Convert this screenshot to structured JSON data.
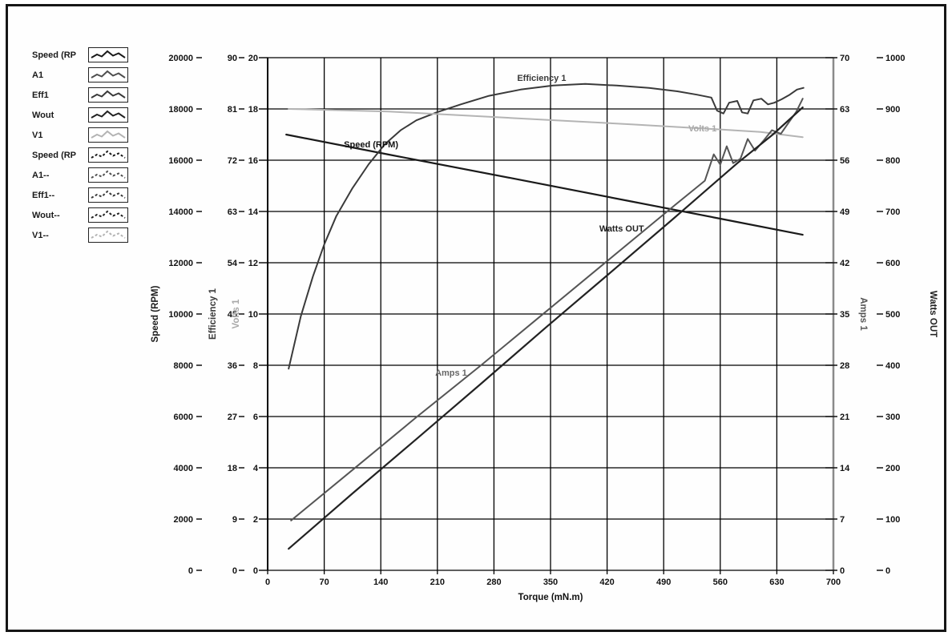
{
  "page": {
    "background": "#ffffff",
    "frame_border_color": "#161616"
  },
  "legend": {
    "items": [
      {
        "label": "Speed (RP",
        "color": "#1a1a1a",
        "dashed": false
      },
      {
        "label": "A1",
        "color": "#4f4f4f",
        "dashed": false
      },
      {
        "label": "Eff1",
        "color": "#3a3a3a",
        "dashed": false
      },
      {
        "label": "Wout",
        "color": "#222222",
        "dashed": false
      },
      {
        "label": "V1",
        "color": "#b4b4b4",
        "dashed": false
      },
      {
        "label": "Speed (RP",
        "color": "#1a1a1a",
        "dashed": true
      },
      {
        "label": "A1--",
        "color": "#4f4f4f",
        "dashed": true
      },
      {
        "label": "Eff1--",
        "color": "#3a3a3a",
        "dashed": true
      },
      {
        "label": "Wout--",
        "color": "#222222",
        "dashed": true
      },
      {
        "label": "V1--",
        "color": "#b4b4b4",
        "dashed": true
      }
    ]
  },
  "chart_data": {
    "type": "line",
    "title": "",
    "xlabel": "Torque (mN.m)",
    "xlim": [
      0,
      700
    ],
    "x_tick_step": 70,
    "grid": true,
    "grid_color": "#000000",
    "axes_left": [
      {
        "id": "speed",
        "title": "Speed (RPM)",
        "min": 0,
        "max": 20000,
        "tick_step": 2000,
        "color": "#1a1a1a"
      },
      {
        "id": "efficiency",
        "title": "Efficiency 1",
        "min": 0,
        "max": 90,
        "tick_step": 9,
        "color": "#3a3a3a"
      },
      {
        "id": "volts",
        "title": "Volts 1",
        "min": 0,
        "max": 20,
        "tick_step": 2,
        "color": "#a8a8a8"
      }
    ],
    "axes_right": [
      {
        "id": "amps",
        "title": "Amps 1",
        "min": 0,
        "max": 70,
        "tick_step": 7,
        "color": "#555555"
      },
      {
        "id": "watts",
        "title": "Watts OUT",
        "min": 0,
        "max": 1000,
        "tick_step": 100,
        "color": "#222222"
      }
    ],
    "series": [
      {
        "name": "Speed (RPM)",
        "axis": "speed",
        "color": "#1a1a1a",
        "width": 2.2,
        "points": [
          [
            23,
            17000
          ],
          [
            150,
            16220
          ],
          [
            300,
            15310
          ],
          [
            450,
            14390
          ],
          [
            560,
            13720
          ],
          [
            662,
            13090
          ]
        ]
      },
      {
        "name": "Efficiency 1",
        "axis": "efficiency",
        "color": "#3a3a3a",
        "width": 2,
        "points": [
          [
            26,
            35.4
          ],
          [
            41,
            44.6
          ],
          [
            56,
            51.6
          ],
          [
            70,
            57.2
          ],
          [
            85,
            62.2
          ],
          [
            105,
            67.1
          ],
          [
            125,
            71.3
          ],
          [
            145,
            74.8
          ],
          [
            165,
            77.3
          ],
          [
            184,
            79.0
          ],
          [
            209,
            80.4
          ],
          [
            239,
            81.8
          ],
          [
            274,
            83.3
          ],
          [
            313,
            84.4
          ],
          [
            353,
            85.1
          ],
          [
            393,
            85.4
          ],
          [
            432,
            85.1
          ],
          [
            472,
            84.7
          ],
          [
            507,
            84.1
          ],
          [
            531,
            83.5
          ],
          [
            549,
            83.0
          ],
          [
            556,
            80.7
          ],
          [
            564,
            80.2
          ],
          [
            571,
            82.1
          ],
          [
            581,
            82.4
          ],
          [
            587,
            80.4
          ],
          [
            594,
            80.2
          ],
          [
            601,
            82.5
          ],
          [
            611,
            82.8
          ],
          [
            619,
            81.8
          ],
          [
            627,
            82.1
          ],
          [
            636,
            82.7
          ],
          [
            646,
            83.5
          ],
          [
            655,
            84.4
          ],
          [
            663,
            84.7
          ]
        ]
      },
      {
        "name": "Volts 1",
        "axis": "volts",
        "color": "#b4b4b4",
        "width": 2,
        "points": [
          [
            26,
            18.0
          ],
          [
            150,
            17.9
          ],
          [
            300,
            17.65
          ],
          [
            450,
            17.4
          ],
          [
            560,
            17.2
          ],
          [
            610,
            17.1
          ],
          [
            662,
            16.9
          ]
        ]
      },
      {
        "name": "Amps 1",
        "axis": "amps",
        "color": "#555555",
        "width": 2,
        "points": [
          [
            29,
            6.8
          ],
          [
            105,
            13.7
          ],
          [
            184,
            20.9
          ],
          [
            264,
            28.0
          ],
          [
            343,
            35.2
          ],
          [
            422,
            42.4
          ],
          [
            502,
            49.7
          ],
          [
            541,
            53.2
          ],
          [
            552,
            56.8
          ],
          [
            560,
            55.4
          ],
          [
            568,
            57.9
          ],
          [
            576,
            55.6
          ],
          [
            585,
            56.2
          ],
          [
            594,
            58.9
          ],
          [
            603,
            57.3
          ],
          [
            613,
            58.6
          ],
          [
            624,
            60.1
          ],
          [
            635,
            59.6
          ],
          [
            645,
            61.2
          ],
          [
            654,
            62.6
          ],
          [
            662,
            64.4
          ]
        ]
      },
      {
        "name": "Watts OUT",
        "axis": "watts",
        "color": "#222222",
        "width": 2.2,
        "points": [
          [
            26,
            42
          ],
          [
            105,
            150
          ],
          [
            184,
            256
          ],
          [
            264,
            364
          ],
          [
            343,
            472
          ],
          [
            422,
            578
          ],
          [
            502,
            686
          ],
          [
            581,
            794
          ],
          [
            625,
            850
          ],
          [
            662,
            903
          ]
        ]
      }
    ],
    "annotations": [
      {
        "text": "Efficiency 1",
        "axis": "efficiency",
        "x": 339,
        "y": 86.5,
        "color": "#3a3a3a"
      },
      {
        "text": "Speed (RPM)",
        "axis": "speed",
        "x": 128,
        "y": 16625,
        "color": "#111111"
      },
      {
        "text": "Volts 1",
        "axis": "volts",
        "x": 538,
        "y": 17.25,
        "color": "#a8a8a8"
      },
      {
        "text": "Watts OUT",
        "axis": "watts",
        "x": 438,
        "y": 667,
        "color": "#222222"
      },
      {
        "text": "Amps 1",
        "axis": "amps",
        "x": 227,
        "y": 27.0,
        "color": "#666666"
      }
    ],
    "right_spine_color": "#8a8a8a"
  }
}
